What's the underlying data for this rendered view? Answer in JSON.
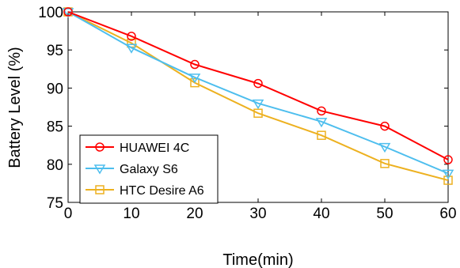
{
  "chart_data": {
    "type": "line",
    "title": "",
    "xlabel": "Time(min)",
    "ylabel": "Battery Level (%)",
    "xlim": [
      0,
      60
    ],
    "ylim": [
      75,
      100
    ],
    "xticks": [
      0,
      10,
      20,
      30,
      40,
      50,
      60
    ],
    "yticks": [
      75,
      80,
      85,
      90,
      95,
      100
    ],
    "grid": false,
    "legend_position": "bottom-left",
    "x": [
      0,
      10,
      20,
      30,
      40,
      50,
      60
    ],
    "series": [
      {
        "name": "HUAWEI 4C",
        "color": "#ff0000",
        "marker": "circle",
        "values": [
          100,
          96.8,
          93.1,
          90.6,
          87.0,
          85.0,
          80.6
        ]
      },
      {
        "name": "Galaxy S6",
        "color": "#4dbeee",
        "marker": "triangle-down",
        "values": [
          100,
          95.3,
          91.4,
          88.0,
          85.6,
          82.3,
          78.8
        ]
      },
      {
        "name": "HTC Desire A6",
        "color": "#edb120",
        "marker": "square",
        "values": [
          100,
          95.9,
          90.7,
          86.7,
          83.8,
          80.1,
          77.9
        ]
      }
    ]
  }
}
